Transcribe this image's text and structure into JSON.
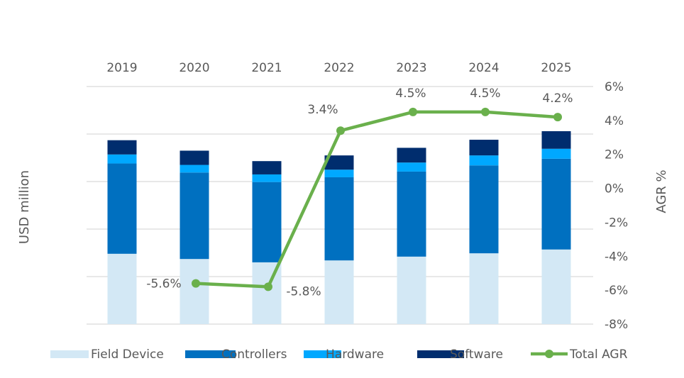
{
  "chart_data": {
    "type": "bar",
    "subtype": "stacked-bar-with-line",
    "title": "",
    "categories": [
      "2019",
      "2020",
      "2021",
      "2022",
      "2023",
      "2024",
      "2025"
    ],
    "ylabel": "USD million",
    "y2label": "AGR %",
    "y_tick_labels_shown": false,
    "series": [
      {
        "name": "Field Device",
        "type": "bar",
        "axis": "left",
        "color": "#d3e8f5",
        "values": [
          1.48,
          1.37,
          1.3,
          1.34,
          1.42,
          1.49,
          1.57
        ]
      },
      {
        "name": "Controllers",
        "type": "bar",
        "axis": "left",
        "color": "#0070c0",
        "values": [
          1.9,
          1.82,
          1.69,
          1.75,
          1.79,
          1.85,
          1.91
        ]
      },
      {
        "name": "Hardware",
        "type": "bar",
        "axis": "left",
        "color": "#00a8ff",
        "values": [
          0.19,
          0.16,
          0.16,
          0.16,
          0.19,
          0.21,
          0.21
        ]
      },
      {
        "name": "Software",
        "type": "bar",
        "axis": "left",
        "color": "#002d6e",
        "values": [
          0.3,
          0.3,
          0.28,
          0.3,
          0.31,
          0.33,
          0.37
        ]
      },
      {
        "name": "Total AGR",
        "type": "line",
        "axis": "right",
        "color": "#6ab04c",
        "values": [
          null,
          -5.6,
          -5.8,
          3.4,
          4.5,
          4.5,
          4.2
        ],
        "labels": [
          "",
          "-5.6%",
          "-5.8%",
          "3.4%",
          "4.5%",
          "4.5%",
          "4.2%"
        ]
      }
    ],
    "ylim": [
      0,
      5
    ],
    "y2lim": [
      -8,
      6
    ],
    "y2_ticks": [
      6,
      4,
      2,
      0,
      -2,
      -4,
      -6,
      -8
    ],
    "y2_tick_labels": [
      "6%",
      "4%",
      "2%",
      "0%",
      "-2%",
      "-4%",
      "-6%",
      "-8%"
    ],
    "grid": true,
    "category_labels_position": "top",
    "legend": {
      "position": "bottom",
      "items": [
        "Field Device",
        "Controllers",
        "Hardware",
        "Software",
        "Total AGR"
      ]
    }
  }
}
